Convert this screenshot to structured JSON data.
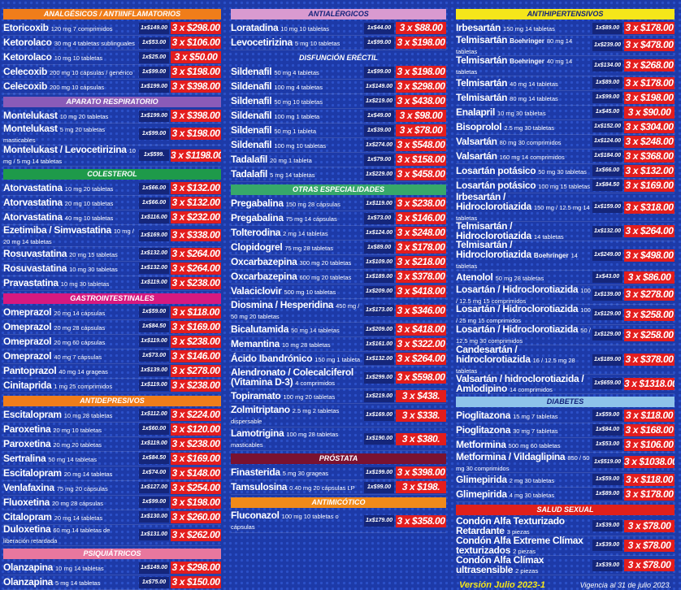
{
  "columns": [
    {
      "sections": [
        {
          "title": "ANALGÉSICOS / ANTIINFLAMATORIOS",
          "color": "#f07d1a",
          "items": [
            {
              "name": "Etoricoxib",
              "desc": "120 mg 7 comprimidos",
              "unit": "1x$149.00",
              "promo": "3 x $298.00"
            },
            {
              "name": "Ketorolaco",
              "desc": "30 mg 4 tabletas sublinguales",
              "unit": "1x$53.00",
              "promo": "3 x $106.00"
            },
            {
              "name": "Ketorolaco",
              "desc": "10 mg 10 tabletas",
              "unit": "1x$25.00",
              "promo": "3 x $50.00"
            },
            {
              "name": "Celecoxib",
              "desc": "200 mg 10 cápsulas / genérico",
              "unit": "1x$99.00",
              "promo": "3 x $198.00"
            },
            {
              "name": "Celecoxib",
              "desc": "200 mg 10 cápsulas",
              "unit": "1x$199.00",
              "promo": "3 x $398.00"
            }
          ]
        },
        {
          "title": "APARATO RESPIRATORIO",
          "color": "#8a5bb8",
          "items": [
            {
              "name": "Montelukast",
              "desc": "10 mg 20 tabletas",
              "unit": "1x$199.00",
              "promo": "3 x $398.00"
            },
            {
              "name": "Montelukast",
              "desc": "5 mg 20 tabletas masticables",
              "unit": "1x$99.00",
              "promo": "3 x $198.00"
            },
            {
              "name": "Montelukast / Levocetirizina",
              "desc": "10 mg / 5 mg 14 tabletas",
              "unit": "1x$599.",
              "promo": "3 x $1198.00"
            }
          ]
        },
        {
          "title": "COLESTEROL",
          "color": "#1e9a4a",
          "items": [
            {
              "name": "Atorvastatina",
              "desc": "10 mg 20 tabletas",
              "unit": "1x$66.00",
              "promo": "3 x $132.00"
            },
            {
              "name": "Atorvastatina",
              "desc": "20 mg 10 tabletas",
              "unit": "1x$66.00",
              "promo": "3 x $132.00"
            },
            {
              "name": "Atorvastatina",
              "desc": "40 mg 10 tabletas",
              "unit": "1x$116.00",
              "promo": "3 x $232.00"
            },
            {
              "name": "Ezetimiba / Simvastatina",
              "desc": "10 mg / 20 mg 14 tabletas",
              "unit": "1x$169.00",
              "promo": "3 x $338.00"
            },
            {
              "name": "Rosuvastatina",
              "desc": "20 mg 15 tabletas",
              "unit": "1x$132.00",
              "promo": "3 x $264.00"
            },
            {
              "name": "Rosuvastatina",
              "desc": "10 mg 30 tabletas",
              "unit": "1x$132.00",
              "promo": "3 x $264.00"
            },
            {
              "name": "Pravastatina",
              "desc": "10 mg 30 tabletas",
              "unit": "1x$119.00",
              "promo": "3 x $238.00"
            }
          ]
        },
        {
          "title": "GASTROINTESTINALES",
          "color": "#d6197f",
          "items": [
            {
              "name": "Omeprazol",
              "desc": "20 mg 14 cápsulas",
              "unit": "1x$59.00",
              "promo": "3 x $118.00"
            },
            {
              "name": "Omeprazol",
              "desc": "20 mg 28 cápsulas",
              "unit": "1x$84.50",
              "promo": "3 x $169.00"
            },
            {
              "name": "Omeprazol",
              "desc": "20 mg 60 cápsulas",
              "unit": "1x$119.00",
              "promo": "3 x $238.00"
            },
            {
              "name": "Omeprazol",
              "desc": "40 mg 7 cápsulas",
              "unit": "1x$73.00",
              "promo": "3 x $146.00"
            },
            {
              "name": "Pantoprazol",
              "desc": "40 mg 14 grageas",
              "unit": "1x$139.00",
              "promo": "3 x $278.00"
            },
            {
              "name": "Cinitaprida",
              "desc": "1 mg 25 comprimidos",
              "unit": "1x$119.00",
              "promo": "3 x $238.00"
            }
          ]
        },
        {
          "title": "ANTIDEPRESIVOS",
          "color": "#f07d1a",
          "items": [
            {
              "name": "Escitalopram",
              "desc": "10 mg 28 tabletas",
              "unit": "1x$112.00",
              "promo": "3 x $224.00"
            },
            {
              "name": "Paroxetina",
              "desc": "20 mg 10 tabletas",
              "unit": "1x$60.00",
              "promo": "3 x $120.00"
            },
            {
              "name": "Paroxetina",
              "desc": "20 mg 20 tabletas",
              "unit": "1x$119.00",
              "promo": "3 x $238.00"
            },
            {
              "name": "Sertralina",
              "desc": "50 mg 14 tabletas",
              "unit": "1x$84.50",
              "promo": "3 x $169.00"
            },
            {
              "name": "Escitalopram",
              "desc": "20 mg 14 tabletas",
              "unit": "1x$74.00",
              "promo": "3 x $148.00"
            },
            {
              "name": "Venlafaxina",
              "desc": "75 mg 20 cápsulas",
              "unit": "1x$127.00",
              "promo": "3 x $254.00"
            },
            {
              "name": "Fluoxetina",
              "desc": "20 mg 28 cápsulas",
              "unit": "1x$99.00",
              "promo": "3 x $198.00"
            },
            {
              "name": "Citalopram",
              "desc": "20 mg 14 tabletas",
              "unit": "1x$130.00",
              "promo": "3 x $260.00"
            },
            {
              "name": "Duloxetina",
              "desc": "60 mg 14 tabletas de liberación retardada",
              "unit": "1x$131.00",
              "promo": "3 x $262.00"
            }
          ]
        },
        {
          "title": "PSIQUIÁTRICOS",
          "color": "#e8779e",
          "items": [
            {
              "name": "Olanzapina",
              "desc": "10 mg 14 tabletas",
              "unit": "1x$149.00",
              "promo": "3 x $298.00"
            },
            {
              "name": "Olanzapina",
              "desc": "5 mg 14 tabletas",
              "unit": "1x$75.00",
              "promo": "3 x $150.00"
            }
          ]
        }
      ]
    },
    {
      "sections": [
        {
          "title": "ANTIALÉRGICOS",
          "color": "#d99ad0",
          "items": [
            {
              "name": "Loratadina",
              "desc": "10 mg 10 tabletas",
              "unit": "1x$44.00",
              "promo": "3 x $88.00"
            },
            {
              "name": "Levocetirizina",
              "desc": "5 mg 10 tabletas",
              "unit": "1x$99.00",
              "promo": "3 x $198.00"
            }
          ]
        },
        {
          "title": "DISFUNCIÓN ERÉCTIL",
          "items": [
            {
              "name": "Sildenafil",
              "desc": "50 mg 4 tabletas",
              "unit": "1x$99.00",
              "promo": "3 x $198.00"
            },
            {
              "name": "Sildenafil",
              "desc": "100 mg 4 tabletas",
              "unit": "1x$149.00",
              "promo": "3 x $298.00"
            },
            {
              "name": "Sildenafil",
              "desc": "50 mg 10 tabletas",
              "unit": "1x$219.00",
              "promo": "3 x $438.00"
            },
            {
              "name": "Sildenafil",
              "desc": "100 mg 1 tableta",
              "unit": "1x$49.00",
              "promo": "3 x $98.00"
            },
            {
              "name": "Sildenafil",
              "desc": "50 mg 1 tableta",
              "unit": "1x$39.00",
              "promo": "3 x $78.00"
            },
            {
              "name": "Sildenafil",
              "desc": "100 mg 10 tabletas",
              "unit": "1x$274.00",
              "promo": "3 x $548.00"
            },
            {
              "name": "Tadalafil",
              "desc": "20 mg 1 tableta",
              "unit": "1x$79.00",
              "promo": "3 x $158.00"
            },
            {
              "name": "Tadalafil",
              "desc": "5 mg 14 tabletas",
              "unit": "1x$229.00",
              "promo": "3 x $458.00"
            }
          ]
        },
        {
          "title": "OTRAS ESPECIALIDADES",
          "color": "#37a86a",
          "items": [
            {
              "name": "Pregabalina",
              "desc": "150 mg 28 cápsulas",
              "unit": "1x$119.00",
              "promo": "3 x $238.00"
            },
            {
              "name": "Pregabalina",
              "desc": "75 mg 14 cápsulas",
              "unit": "1x$73.00",
              "promo": "3 x $146.00"
            },
            {
              "name": "Tolterodina",
              "desc": "2 mg 14 tabletas",
              "unit": "1x$124.00",
              "promo": "3 x $248.00"
            },
            {
              "name": "Clopidogrel",
              "desc": "75 mg 28 tabletas",
              "unit": "1x$89.00",
              "promo": "3 x $178.00"
            },
            {
              "name": "Oxcarbazepina",
              "desc": "300 mg 20 tabletas",
              "unit": "1x$109.00",
              "promo": "3 x $218.00"
            },
            {
              "name": "Oxcarbazepina",
              "desc": "600 mg 20 tabletas",
              "unit": "1x$189.00",
              "promo": "3 x $378.00"
            },
            {
              "name": "Valaciclovir",
              "desc": "500 mg 10 tabletas",
              "unit": "1x$209.00",
              "promo": "3 x $418.00"
            },
            {
              "name": "Diosmina / Hesperidina",
              "desc": "450 mg / 50 mg 20 tabletas",
              "unit": "1x$173.00",
              "promo": "3 x $346.00"
            },
            {
              "name": "Bicalutamida",
              "desc": "50 mg 14 tabletas",
              "unit": "1x$209.00",
              "promo": "3 x $418.00"
            },
            {
              "name": "Memantina",
              "desc": "10 mg 28 tabletas",
              "unit": "1x$161.00",
              "promo": "3 x $322.00"
            },
            {
              "name": "Ácido Ibandrónico",
              "desc": "150 mg 1 tableta",
              "unit": "1x$132.00",
              "promo": "3 x $264.00"
            },
            {
              "name": "Alendronato / Colecalciferol (Vitamina D-3)",
              "desc": "4 comprimidos",
              "unit": "1x$299.00",
              "promo": "3 x $598.00"
            },
            {
              "name": "Topiramato",
              "desc": "100 mg 20 tabletas",
              "unit": "1x$219.00",
              "promo": "3 x $438."
            },
            {
              "name": "Zolmitriptano",
              "desc": "2.5 mg 2 tabletas dispersable",
              "unit": "1x$169.00",
              "promo": "3 x $338."
            },
            {
              "name": "Lamotrigina",
              "desc": "100 mg 28 tabletas masticables",
              "unit": "1x$190.00",
              "promo": "3 x $380."
            }
          ]
        },
        {
          "title": "PRÓSTATA",
          "color": "#7a1230",
          "items": [
            {
              "name": "Finasterida",
              "desc": "5 mg 30 grageas",
              "unit": "1x$199.00",
              "promo": "3 x $398.00"
            },
            {
              "name": "Tamsulosina",
              "desc": "0.40 mg 20 cápsulas LP",
              "unit": "1x$99.00",
              "promo": "3 x $198."
            }
          ]
        },
        {
          "title": "ANTIMICÓTICO",
          "color": "#f08a1a",
          "items": [
            {
              "name": "Fluconazol",
              "desc": "100 mg 10 tabletas o cápsulas",
              "unit": "1x$179.00",
              "promo": "3 x $358.00"
            }
          ]
        }
      ]
    },
    {
      "sections": [
        {
          "title": "ANTIHIPERTENSIVOS",
          "color": "#f5e61a",
          "items": [
            {
              "name": "Irbesartán",
              "desc": "150 mg 14 tabletas",
              "unit": "1x$89.00",
              "promo": "3 x $178.00"
            },
            {
              "name": "Telmisartán",
              "brand": "Boehringer",
              "desc": "80 mg 14 tabletas",
              "unit": "1x$239.00",
              "promo": "3 x $478.00"
            },
            {
              "name": "Telmisartán",
              "brand": "Boehringer",
              "desc": "40 mg 14 tabletas",
              "unit": "1x$134.00",
              "promo": "3 x $268.00"
            },
            {
              "name": "Telmisartán",
              "desc": "40 mg 14 tabletas",
              "unit": "1x$89.00",
              "promo": "3 x $178.00"
            },
            {
              "name": "Telmisartán",
              "desc": "80 mg 14 tabletas",
              "unit": "1x$99.00",
              "promo": "3 x $198.00"
            },
            {
              "name": "Enalapril",
              "desc": "10 mg 30 tabletas",
              "unit": "1x$45.00",
              "promo": "3 x $90.00"
            },
            {
              "name": "Bisoprolol",
              "desc": "2.5 mg 30 tabletas",
              "unit": "1x$152.00",
              "promo": "3 x $304.00"
            },
            {
              "name": "Valsartán",
              "desc": "80 mg 30 comprimidos",
              "unit": "1x$124.00",
              "promo": "3 x $248.00"
            },
            {
              "name": "Valsartán",
              "desc": "160 mg 14 comprimidos",
              "unit": "1x$184.00",
              "promo": "3 x $368.00"
            },
            {
              "name": "Losartán potásico",
              "desc": "50 mg 30 tabletas",
              "unit": "1x$66.00",
              "promo": "3 x $132.00"
            },
            {
              "name": "Losartán potásico",
              "desc": "100 mg 15 tabletas",
              "unit": "1x$84.50",
              "promo": "3 x $169.00"
            },
            {
              "name": "Irbesartán / Hidroclorotiazida",
              "desc": "150 mg / 12.5 mg 14 tabletas",
              "unit": "1x$159.00",
              "promo": "3 x $318.00"
            },
            {
              "name": "Telmisartán / Hidroclorotiazida",
              "desc": "14 tabletas",
              "unit": "1x$132.00",
              "promo": "3 x $264.00"
            },
            {
              "name": "Telmisartán / Hidroclorotiazida",
              "brand": "Boehringer",
              "desc": "14 tabletas",
              "unit": "1x$249.00",
              "promo": "3 x $498.00"
            },
            {
              "name": "Atenolol",
              "desc": "50 mg 28 tabletas",
              "unit": "1x$43.00",
              "promo": "3 x $86.00"
            },
            {
              "name": "Losartán / Hidroclorotiazida",
              "desc": "100 / 12.5 mg 15 comprimidos",
              "unit": "1x$139.00",
              "promo": "3 x $278.00"
            },
            {
              "name": "Losartán / Hidroclorotiazida",
              "desc": "100 / 25 mg 15 comprimidos",
              "unit": "1x$129.00",
              "promo": "3 x $258.00"
            },
            {
              "name": "Losartán / Hidroclorotiazida",
              "desc": "50 / 12.5 mg 30 comprimidos",
              "unit": "1x$129.00",
              "promo": "3 x $258.00"
            },
            {
              "name": "Candesartán / hidroclorotiazida",
              "desc": "16 / 12.5 mg 28 tabletas",
              "unit": "1x$189.00",
              "promo": "3 x $378.00"
            },
            {
              "name": "Valsartán / hidroclorotiazida / Amlodipino",
              "desc": "14 comprimidos",
              "unit": "1x$659.00",
              "promo": "3 x $1318.00"
            }
          ]
        },
        {
          "title": "DIABETES",
          "color": "#8ec3ea",
          "items": [
            {
              "name": "Pioglitazona",
              "desc": "15 mg 7 tabletas",
              "unit": "1x$59.00",
              "promo": "3 x $118.00"
            },
            {
              "name": "Pioglitazona",
              "desc": "30 mg 7 tabletas",
              "unit": "1x$84.00",
              "promo": "3 x $168.00"
            },
            {
              "name": "Metformina",
              "desc": "500 mg 60 tabletas",
              "unit": "1x$53.00",
              "promo": "3 x $106.00"
            },
            {
              "name": "Metformina / Vildaglipina",
              "desc": "850 / 50 mg 30 comprimidos",
              "unit": "1x$519.00",
              "promo": "3 x $1038.00"
            },
            {
              "name": "Glimepirida",
              "desc": "2 mg 30 tabletas",
              "unit": "1x$59.00",
              "promo": "3 x $118.00"
            },
            {
              "name": "Glimepirida",
              "desc": "4 mg 30 tabletas",
              "unit": "1x$89.00",
              "promo": "3 x $178.00"
            }
          ]
        },
        {
          "title": "SALUD SEXUAL",
          "color": "#e0201b",
          "items": [
            {
              "name": "Condón Alfa Texturizado Retardante",
              "desc": "3 piezas",
              "unit": "1x$39.00",
              "promo": "3 x $78.00"
            },
            {
              "name": "Condón Alfa Extreme Clímax texturizados",
              "desc": "2 piezas",
              "unit": "1x$39.00",
              "promo": "3 x $78.00"
            },
            {
              "name": "Condón Alfa Clímax ultrasensible",
              "desc": "2 piezas",
              "unit": "1x$39.00",
              "promo": "3 x $78.00"
            }
          ]
        }
      ]
    }
  ],
  "footer": {
    "version": "Versión Julio 2023-1",
    "validity": "Vigencia al 31 de julio 2023."
  }
}
